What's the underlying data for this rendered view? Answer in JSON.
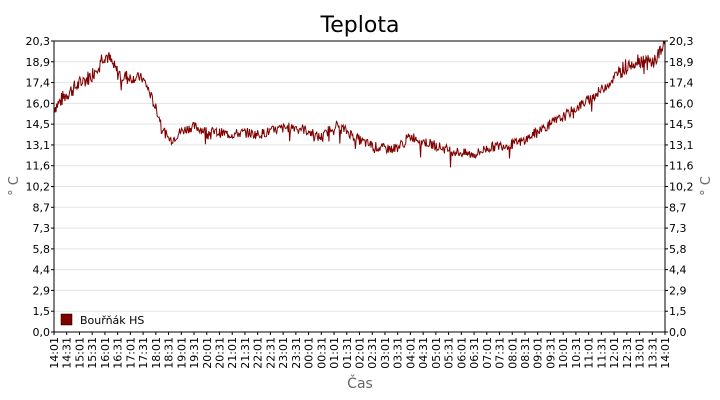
{
  "chart_data": {
    "type": "line",
    "title": "Teplota",
    "xlabel": "Čas",
    "ylabel": "° C",
    "ylim": [
      0,
      20.3
    ],
    "yticks": [
      "0,0",
      "1,5",
      "2,9",
      "4,4",
      "5,8",
      "7,3",
      "8,7",
      "10,2",
      "11,6",
      "13,1",
      "14,5",
      "16,0",
      "17,4",
      "18,9",
      "20,3"
    ],
    "x_tick_labels": [
      "14:01",
      "14:31",
      "15:01",
      "15:31",
      "16:01",
      "16:31",
      "17:01",
      "17:31",
      "18:01",
      "18:31",
      "19:01",
      "19:31",
      "20:01",
      "20:31",
      "21:01",
      "21:31",
      "22:01",
      "22:31",
      "23:01",
      "23:31",
      "00:01",
      "00:31",
      "01:01",
      "01:31",
      "02:01",
      "02:31",
      "03:01",
      "03:31",
      "04:01",
      "04:31",
      "05:01",
      "05:31",
      "06:01",
      "06:31",
      "07:01",
      "07:31",
      "08:01",
      "08:31",
      "09:01",
      "09:31",
      "10:01",
      "10:31",
      "11:01",
      "11:31",
      "12:01",
      "12:31",
      "13:01",
      "13:31",
      "14:01"
    ],
    "grid": true,
    "legend_position": "bottom-left",
    "series": [
      {
        "name": "Bouřňák HS",
        "color": "#800000",
        "x": [
          "14:01",
          "14:31",
          "15:01",
          "15:31",
          "16:01",
          "16:31",
          "17:01",
          "17:31",
          "18:01",
          "18:31",
          "19:01",
          "19:31",
          "20:01",
          "20:31",
          "21:01",
          "21:31",
          "22:01",
          "22:31",
          "23:01",
          "23:31",
          "00:01",
          "00:31",
          "01:01",
          "01:31",
          "02:01",
          "02:31",
          "03:01",
          "03:31",
          "04:01",
          "04:31",
          "05:01",
          "05:31",
          "06:01",
          "06:31",
          "07:01",
          "07:31",
          "08:01",
          "08:31",
          "09:01",
          "09:31",
          "10:01",
          "10:31",
          "11:01",
          "11:31",
          "12:01",
          "12:31",
          "13:01",
          "13:31",
          "14:01"
        ],
        "values": [
          15.7,
          16.6,
          17.3,
          18.0,
          19.3,
          18.1,
          17.7,
          17.6,
          15.6,
          13.5,
          14.0,
          14.3,
          14.0,
          13.9,
          13.8,
          13.9,
          13.8,
          14.0,
          14.2,
          14.3,
          14.0,
          13.6,
          14.4,
          14.0,
          13.4,
          13.0,
          12.8,
          12.9,
          13.6,
          13.3,
          13.0,
          12.7,
          12.5,
          12.4,
          12.8,
          13.0,
          13.1,
          13.4,
          14.0,
          14.5,
          15.0,
          15.6,
          16.2,
          16.9,
          17.7,
          18.6,
          19.0,
          18.8,
          20.0
        ]
      }
    ]
  }
}
